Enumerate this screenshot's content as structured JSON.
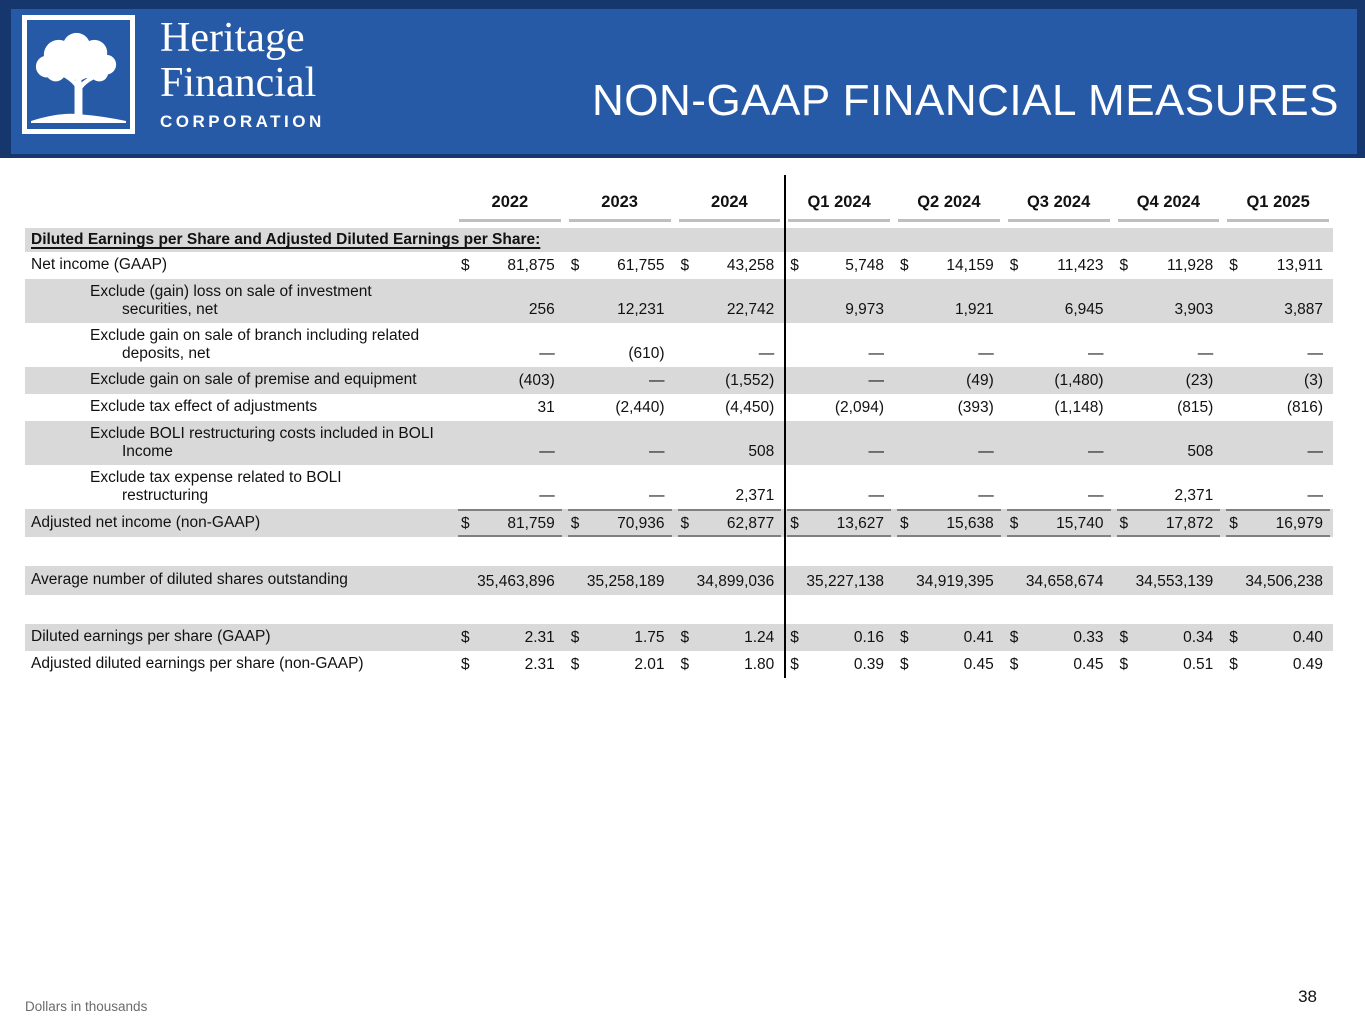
{
  "header": {
    "logo": {
      "line1": "Heritage",
      "line2": "Financial",
      "line3": "CORPORATION"
    },
    "title": "NON-GAAP FINANCIAL MEASURES"
  },
  "colors": {
    "banner_blue": "#275AA6",
    "banner_frame": "#16366E",
    "row_gray": "#D9D9D9",
    "header_underline": "#BFBFBF",
    "total_rule_gray": "#808080",
    "divider_black": "#000000"
  },
  "table": {
    "columns": [
      "2022",
      "2023",
      "2024",
      "Q1 2024",
      "Q2 2024",
      "Q3 2024",
      "Q4 2024",
      "Q1 2025"
    ],
    "section_header": "Diluted Earnings per Share and Adjusted Diluted Earnings per Share:",
    "rows": [
      {
        "label": "Net income (GAAP)",
        "indent": false,
        "shaded": false,
        "dollar": true,
        "rule": false,
        "lines": 1,
        "values": [
          "81,875",
          "61,755",
          "43,258",
          "5,748",
          "14,159",
          "11,423",
          "11,928",
          "13,911"
        ]
      },
      {
        "label": "Exclude (gain) loss on sale of investment\nsecurities, net",
        "indent": true,
        "shaded": true,
        "dollar": false,
        "rule": false,
        "lines": 2,
        "values": [
          "256",
          "12,231",
          "22,742",
          "9,973",
          "1,921",
          "6,945",
          "3,903",
          "3,887"
        ]
      },
      {
        "label": "Exclude gain on sale of branch including related\ndeposits, net",
        "indent": true,
        "shaded": false,
        "dollar": false,
        "rule": false,
        "lines": 2,
        "values": [
          "—",
          "(610)",
          "—",
          "—",
          "—",
          "—",
          "—",
          "—"
        ]
      },
      {
        "label": "Exclude gain on sale of premise and equipment",
        "indent": true,
        "shaded": true,
        "dollar": false,
        "rule": false,
        "lines": 1,
        "values": [
          "(403)",
          "—",
          "(1,552)",
          "—",
          "(49)",
          "(1,480)",
          "(23)",
          "(3)"
        ]
      },
      {
        "label": "Exclude tax effect of adjustments",
        "indent": true,
        "shaded": false,
        "dollar": false,
        "rule": false,
        "lines": 1,
        "values": [
          "31",
          "(2,440)",
          "(4,450)",
          "(2,094)",
          "(393)",
          "(1,148)",
          "(815)",
          "(816)"
        ]
      },
      {
        "label": "Exclude BOLI restructuring costs included in BOLI\nIncome",
        "indent": true,
        "shaded": true,
        "dollar": false,
        "rule": false,
        "lines": 2,
        "values": [
          "—",
          "—",
          "508",
          "—",
          "—",
          "—",
          "508",
          "—"
        ]
      },
      {
        "label": "Exclude tax expense related to BOLI\nrestructuring",
        "indent": true,
        "shaded": false,
        "dollar": false,
        "rule": false,
        "lines": 2,
        "values": [
          "—",
          "—",
          "2,371",
          "—",
          "—",
          "—",
          "2,371",
          "—"
        ]
      },
      {
        "label": "Adjusted net income (non-GAAP)",
        "indent": false,
        "shaded": true,
        "dollar": true,
        "rule": true,
        "lines": "total",
        "values": [
          "81,759",
          "70,936",
          "62,877",
          "13,627",
          "15,638",
          "15,740",
          "17,872",
          "16,979"
        ]
      },
      {
        "spacer": true
      },
      {
        "label": "Average number of diluted shares outstanding",
        "indent": false,
        "shaded": true,
        "dollar": false,
        "rule": false,
        "lines": "avg",
        "values": [
          "35,463,896",
          "35,258,189",
          "34,899,036",
          "35,227,138",
          "34,919,395",
          "34,658,674",
          "34,553,139",
          "34,506,238"
        ]
      },
      {
        "spacer": true
      },
      {
        "label": "Diluted earnings per share (GAAP)",
        "indent": false,
        "shaded": true,
        "dollar": true,
        "rule": false,
        "lines": 1,
        "values": [
          "2.31",
          "1.75",
          "1.24",
          "0.16",
          "0.41",
          "0.33",
          "0.34",
          "0.40"
        ]
      },
      {
        "label": "Adjusted diluted earnings per share (non-GAAP)",
        "indent": false,
        "shaded": false,
        "dollar": true,
        "rule": false,
        "lines": 1,
        "values": [
          "2.31",
          "2.01",
          "1.80",
          "0.39",
          "0.45",
          "0.45",
          "0.51",
          "0.49"
        ]
      }
    ]
  },
  "footer": {
    "note": "Dollars in thousands",
    "page": "38"
  }
}
